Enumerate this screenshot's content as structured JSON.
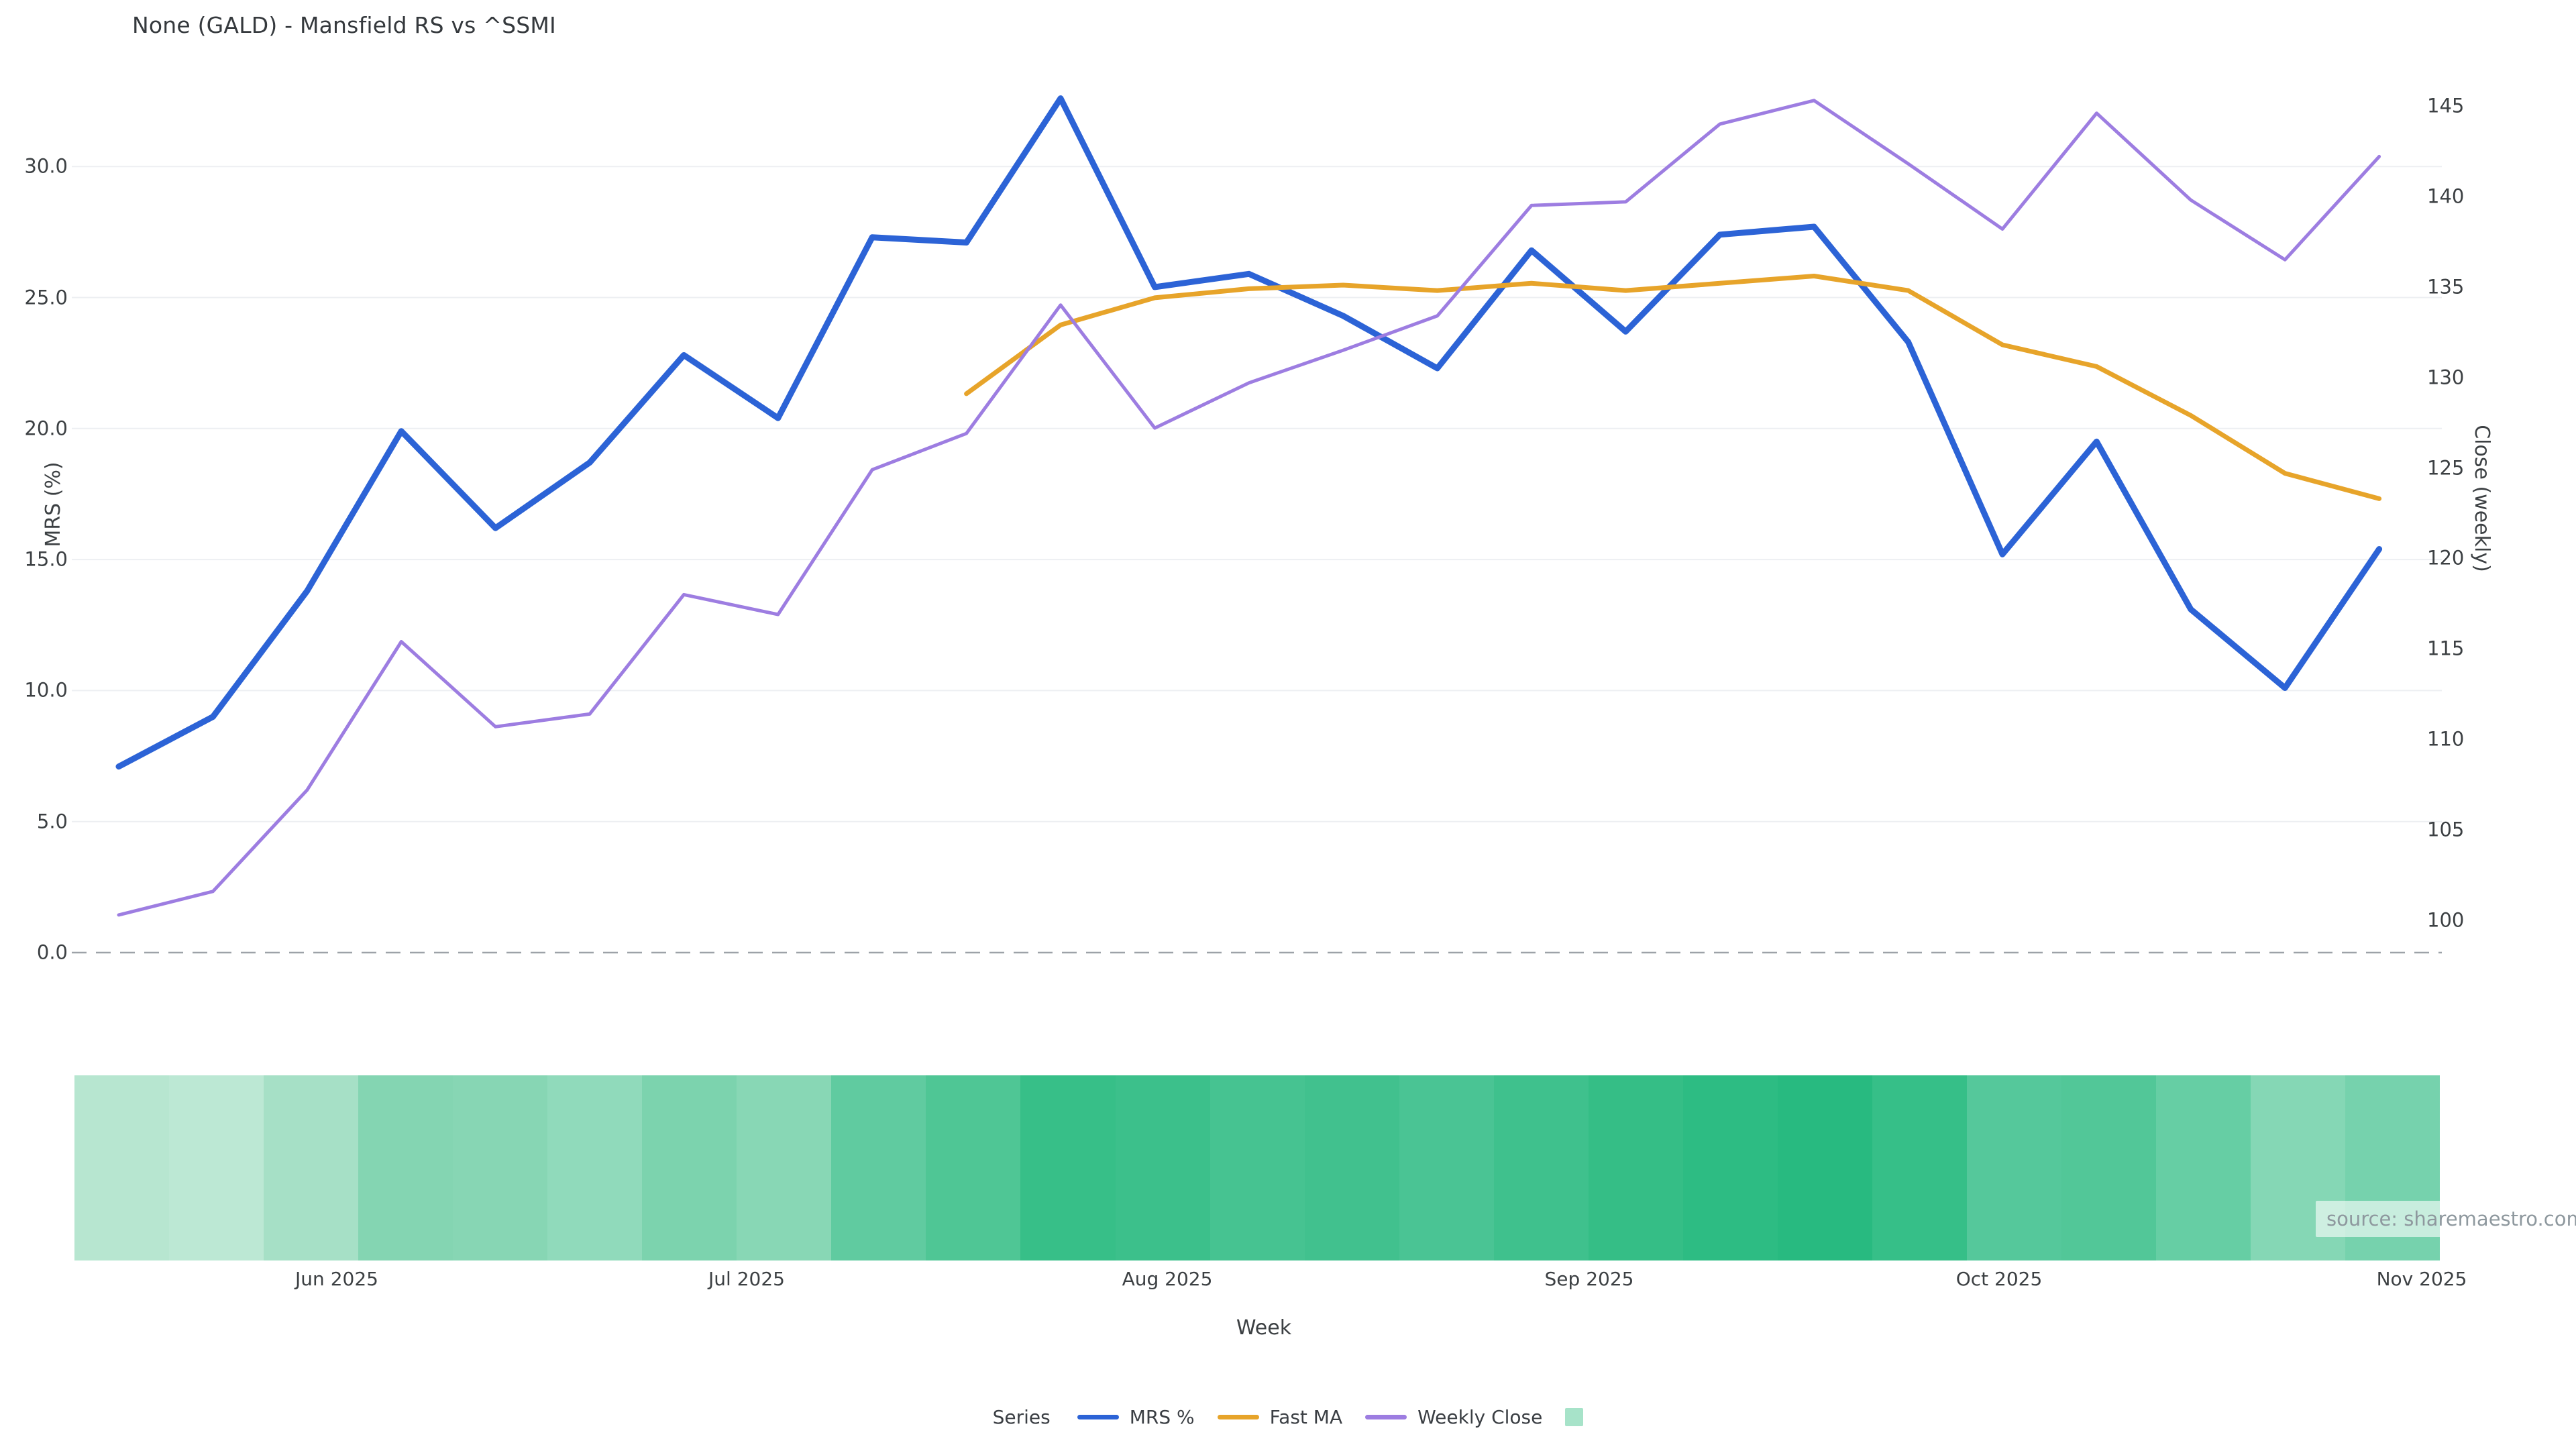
{
  "title": "None (GALD) - Mansfield RS vs ^SSMI",
  "watermark": "source: sharemaestro.com",
  "colors": {
    "mrs_line": "#2c63d6",
    "fast_ma_line": "#e7a42a",
    "weekly_close_line": "#9d7de1",
    "legend_square": "#a7e3c9",
    "grid": "#edeff2",
    "zero_dash": "#9da2a8",
    "text": "#3c4043"
  },
  "axes": {
    "left": {
      "label": "MRS (%)",
      "ticks": [
        "30.0",
        "25.0",
        "20.0",
        "15.0",
        "10.0",
        "5.0",
        "0.0"
      ],
      "tick_values": [
        30,
        25,
        20,
        15,
        10,
        5,
        0
      ]
    },
    "right": {
      "label": "Close (weekly)",
      "ticks": [
        "145",
        "140",
        "135",
        "130",
        "125",
        "120",
        "115",
        "110",
        "105",
        "100"
      ],
      "tick_values": [
        145,
        140,
        135,
        130,
        125,
        120,
        115,
        110,
        105,
        100
      ]
    },
    "x": {
      "label": "Week",
      "ticks": [
        {
          "label": "Jun 2025",
          "px": 502
        },
        {
          "label": "Jul 2025",
          "px": 1113
        },
        {
          "label": "Aug 2025",
          "px": 1740
        },
        {
          "label": "Sep 2025",
          "px": 2369
        },
        {
          "label": "Oct 2025",
          "px": 2980
        },
        {
          "label": "Nov 2025",
          "px": 3610
        }
      ]
    }
  },
  "legend": {
    "title": "Series",
    "items": [
      {
        "label": "MRS %",
        "swatch": "line",
        "color": "#2c63d6"
      },
      {
        "label": "Fast MA",
        "swatch": "line",
        "color": "#e7a42a"
      },
      {
        "label": "Weekly Close",
        "swatch": "line",
        "color": "#9d7de1"
      },
      {
        "label": "",
        "swatch": "square",
        "color": "#a7e3c9"
      }
    ]
  },
  "chart_data": {
    "type": "line",
    "title": "None (GALD) - Mansfield RS vs ^SSMI",
    "xlabel": "Week",
    "ylabel_left": "MRS (%)",
    "ylabel_right": "Close (weekly)",
    "x_frequency": "weekly",
    "x_range_estimate": [
      "2025-05-16",
      "2025-10-31"
    ],
    "n_points": 25,
    "ylim_left": [
      -1.8,
      33.4
    ],
    "ylim_right": [
      95.6,
      146.6
    ],
    "grid": true,
    "legend_position": "bottom-center",
    "zero_line": {
      "value": 0.0,
      "axis": "left",
      "style": "dashed",
      "color": "#9da2a8"
    },
    "series": [
      {
        "name": "MRS %",
        "axis": "left",
        "color": "#2c63d6",
        "stroke_width": 9,
        "values": [
          7.1,
          9.0,
          13.8,
          19.9,
          16.2,
          18.7,
          22.8,
          20.4,
          27.3,
          27.1,
          32.6,
          25.4,
          25.9,
          24.3,
          22.3,
          26.8,
          23.7,
          27.4,
          27.7,
          23.3,
          15.2,
          19.5,
          13.1,
          10.1,
          15.4
        ]
      },
      {
        "name": "Fast MA",
        "axis": "right",
        "color": "#e7a42a",
        "stroke_width": 7,
        "values": [
          null,
          null,
          null,
          null,
          null,
          null,
          null,
          null,
          null,
          129.1,
          132.9,
          134.4,
          134.9,
          135.1,
          134.8,
          135.2,
          134.8,
          135.2,
          135.6,
          134.8,
          131.8,
          130.6,
          127.9,
          124.7,
          123.3
        ]
      },
      {
        "name": "Weekly Close",
        "axis": "right",
        "color": "#9d7de1",
        "stroke_width": 5,
        "values": [
          100.3,
          101.6,
          107.2,
          115.4,
          110.7,
          111.4,
          118.0,
          116.9,
          124.9,
          126.9,
          134.0,
          127.2,
          129.7,
          131.5,
          133.4,
          139.5,
          139.7,
          144.0,
          145.3,
          141.8,
          138.2,
          144.6,
          139.8,
          136.5,
          142.2
        ]
      }
    ],
    "heatmap_strip": {
      "type": "heatmap",
      "n_cells": 25,
      "colors": [
        "#b7e6d0",
        "#bce8d4",
        "#a6e0c6",
        "#84d5b2",
        "#87d6b4",
        "#90dabb",
        "#7cd3ae",
        "#88d7b5",
        "#60cba0",
        "#4fc695",
        "#37bf88",
        "#3cc08b",
        "#46c391",
        "#41c18e",
        "#4ac494",
        "#3fc18d",
        "#35be86",
        "#2dbc83",
        "#28ba80",
        "#36bf88",
        "#55c89b",
        "#52c798",
        "#66cea4",
        "#85d7b5",
        "#76d2ad"
      ]
    }
  }
}
